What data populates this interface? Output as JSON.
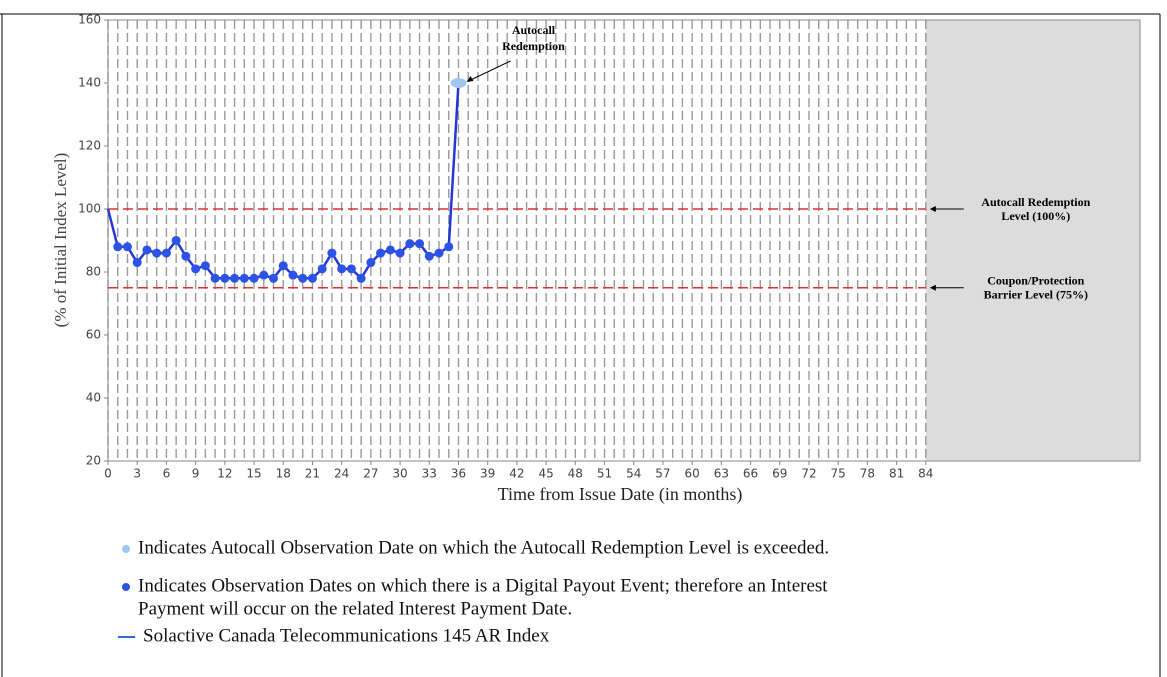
{
  "chart_data": {
    "type": "line",
    "x_label": "Time from Issue Date (in months)",
    "y_label": "(% of Initial Index Level)",
    "x": [
      0,
      1,
      2,
      3,
      4,
      5,
      6,
      7,
      8,
      9,
      10,
      11,
      12,
      13,
      14,
      15,
      16,
      17,
      18,
      19,
      20,
      21,
      22,
      23,
      24,
      25,
      26,
      27,
      28,
      29,
      30,
      31,
      32,
      33,
      34,
      35,
      36
    ],
    "series": [
      {
        "name": "Solactive Canada Telecommunications 145 AR Index",
        "color": "#2438d8",
        "values": [
          100,
          88,
          88,
          83,
          87,
          86,
          86,
          90,
          85,
          81,
          82,
          78,
          78,
          78,
          78,
          78,
          79,
          78,
          82,
          79,
          78,
          78,
          81,
          86,
          81,
          81,
          78,
          83,
          86,
          87,
          86,
          89,
          89,
          85,
          86,
          88,
          140
        ],
        "marker_colors": [
          null,
          "#2c52e6",
          "#2c52e6",
          "#2c52e6",
          "#2c52e6",
          "#2c52e6",
          "#2c52e6",
          "#2c52e6",
          "#2c52e6",
          "#2c52e6",
          "#2c52e6",
          "#2c52e6",
          "#2c52e6",
          "#2c52e6",
          "#2c52e6",
          "#2c52e6",
          "#2c52e6",
          "#2c52e6",
          "#2c52e6",
          "#2c52e6",
          "#2c52e6",
          "#2c52e6",
          "#2c52e6",
          "#2c52e6",
          "#2c52e6",
          "#2c52e6",
          "#2c52e6",
          "#2c52e6",
          "#2c52e6",
          "#2c52e6",
          "#2c52e6",
          "#2c52e6",
          "#2c52e6",
          "#2c52e6",
          "#2c52e6",
          "#2c52e6",
          "#9ec8f0"
        ]
      }
    ],
    "xlim": [
      0,
      106
    ],
    "ylim": [
      20,
      160
    ],
    "xticks": [
      0,
      3,
      6,
      9,
      12,
      15,
      18,
      21,
      24,
      27,
      30,
      33,
      36,
      39,
      42,
      45,
      48,
      51,
      54,
      57,
      60,
      63,
      66,
      69,
      72,
      75,
      78,
      81,
      84
    ],
    "yticks": [
      20,
      40,
      60,
      80,
      100,
      120,
      140,
      160
    ],
    "grid_x_step": 1,
    "shaded_xrange": [
      84,
      106
    ],
    "levels": [
      {
        "value": 100,
        "color": "#e03030",
        "label": [
          "Autocall Redemption",
          "Level (100%)"
        ]
      },
      {
        "value": 75,
        "color": "#e03030",
        "label": [
          "Coupon/Protection",
          "Barrier Level (75%)"
        ]
      }
    ],
    "annotation": {
      "text": [
        "Autocall",
        "Redemption"
      ],
      "x": 36,
      "y": 140
    },
    "legend": [
      {
        "color": "#9ec8f0",
        "marker": "dot",
        "text": [
          "Indicates Autocall Observation Date on which the Autocall Redemption Level is exceeded."
        ]
      },
      {
        "color": "#2c52e6",
        "marker": "dot",
        "text": [
          "Indicates Observation Dates on which there is a Digital Payout Event; therefore an Interest",
          "Payment will occur on the related Interest Payment Date."
        ]
      },
      {
        "color": "#2a6fd0",
        "marker": "line",
        "text_bind": "chart_data.series.0.name"
      }
    ]
  }
}
